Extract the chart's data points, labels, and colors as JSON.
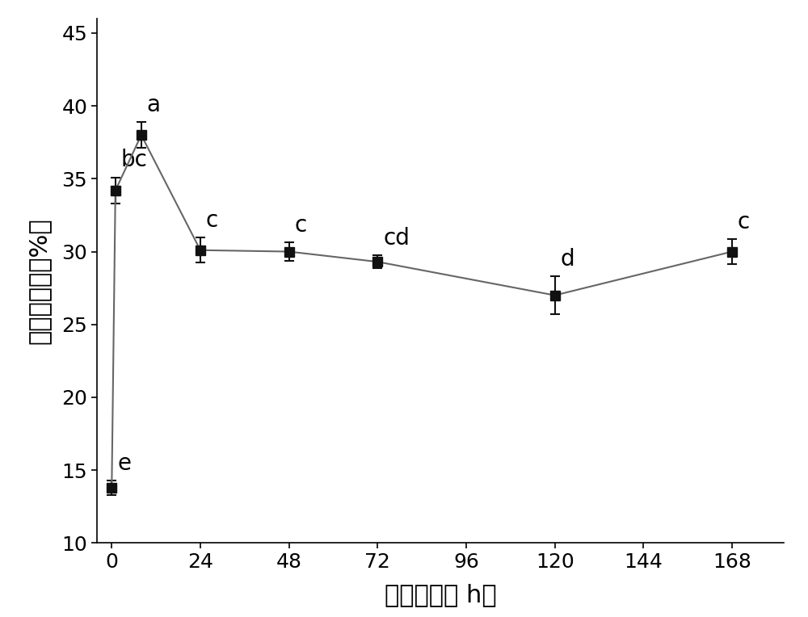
{
  "x": [
    0,
    1,
    8,
    24,
    48,
    72,
    120,
    168
  ],
  "y": [
    13.8,
    34.2,
    38.0,
    30.1,
    30.0,
    29.3,
    27.0,
    30.0
  ],
  "yerr": [
    0.5,
    0.9,
    0.9,
    0.85,
    0.65,
    0.45,
    1.3,
    0.85
  ],
  "labels": [
    "e",
    "bc",
    "a",
    "c",
    "c",
    "cd",
    "d",
    "c"
  ],
  "label_dx": [
    1.5,
    1.5,
    1.5,
    1.5,
    1.5,
    1.5,
    1.5,
    1.5
  ],
  "label_dy": [
    0.4,
    0.4,
    0.4,
    0.4,
    0.4,
    0.4,
    0.4,
    0.4
  ],
  "xlabel": "孰后时间（ h）",
  "ylabel": "加压失水率（%）",
  "xlim": [
    -4,
    182
  ],
  "ylim": [
    10,
    46
  ],
  "xticks": [
    0,
    24,
    48,
    72,
    96,
    120,
    144,
    168
  ],
  "yticks": [
    10,
    15,
    20,
    25,
    30,
    35,
    40,
    45
  ],
  "line_color": "#666666",
  "marker_color": "#111111",
  "marker_size": 9,
  "line_width": 1.5,
  "background_color": "#ffffff",
  "fontsize_labels": 22,
  "fontsize_ticks": 18,
  "fontsize_annot": 20
}
